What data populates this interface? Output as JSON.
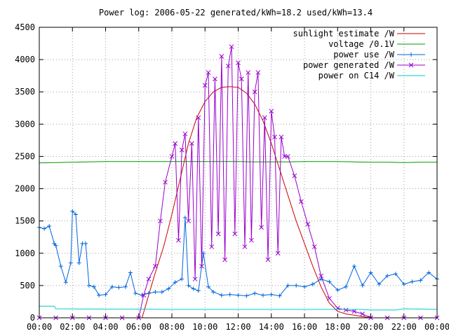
{
  "chart_data": {
    "type": "line",
    "title": "Power log: 2006-05-22 generated/kWh=18.2 used/kWh=13.4",
    "xlabel": "",
    "ylabel": "",
    "xlim": [
      0,
      24
    ],
    "ylim": [
      0,
      4500
    ],
    "grid": true,
    "legend_position": "top-right",
    "x_ticks": [
      {
        "v": 0,
        "label": "00:00"
      },
      {
        "v": 2,
        "label": "02:00"
      },
      {
        "v": 4,
        "label": "04:00"
      },
      {
        "v": 6,
        "label": "06:00"
      },
      {
        "v": 8,
        "label": "08:00"
      },
      {
        "v": 10,
        "label": "10:00"
      },
      {
        "v": 12,
        "label": "12:00"
      },
      {
        "v": 14,
        "label": "14:00"
      },
      {
        "v": 16,
        "label": "16:00"
      },
      {
        "v": 18,
        "label": "18:00"
      },
      {
        "v": 20,
        "label": "20:00"
      },
      {
        "v": 22,
        "label": "22:00"
      },
      {
        "v": 24,
        "label": "00:00"
      }
    ],
    "y_ticks": [
      {
        "v": 0,
        "label": "0"
      },
      {
        "v": 500,
        "label": "500"
      },
      {
        "v": 1000,
        "label": "1000"
      },
      {
        "v": 1500,
        "label": "1500"
      },
      {
        "v": 2000,
        "label": "2000"
      },
      {
        "v": 2500,
        "label": "2500"
      },
      {
        "v": 3000,
        "label": "3000"
      },
      {
        "v": 3500,
        "label": "3500"
      },
      {
        "v": 4000,
        "label": "4000"
      },
      {
        "v": 4500,
        "label": "4500"
      }
    ],
    "series": [
      {
        "name": "sunlight estimate /W",
        "color": "#cc0000",
        "marker": "none",
        "x": [
          6.2,
          6.6,
          7.0,
          7.5,
          8.0,
          8.5,
          9.0,
          9.5,
          10.0,
          10.5,
          11.0,
          11.5,
          12.0,
          12.5,
          13.0,
          13.5,
          14.0,
          14.5,
          15.0,
          15.5,
          16.0,
          16.5,
          17.0,
          17.5,
          18.0,
          18.5,
          19.0,
          19.5,
          20.0
        ],
        "y": [
          0,
          350,
          700,
          1100,
          1600,
          2150,
          2700,
          3100,
          3350,
          3500,
          3570,
          3580,
          3570,
          3480,
          3310,
          3050,
          2700,
          2300,
          1900,
          1500,
          1150,
          800,
          480,
          230,
          100,
          60,
          40,
          20,
          0
        ]
      },
      {
        "name": "voltage /0.1V",
        "color": "#009900",
        "marker": "none",
        "x": [
          0,
          1,
          2,
          3,
          4,
          5,
          6,
          7,
          8,
          9,
          10,
          11,
          12,
          13,
          14,
          15,
          16,
          17,
          18,
          19,
          20,
          21,
          22,
          23,
          24
        ],
        "y": [
          2400,
          2405,
          2410,
          2415,
          2420,
          2420,
          2420,
          2420,
          2420,
          2420,
          2420,
          2420,
          2420,
          2415,
          2415,
          2415,
          2420,
          2420,
          2420,
          2415,
          2410,
          2410,
          2405,
          2410,
          2410
        ]
      },
      {
        "name": "power use /W",
        "color": "#0066dd",
        "marker": "plus",
        "x": [
          0.0,
          0.3,
          0.6,
          0.9,
          1.0,
          1.3,
          1.6,
          1.9,
          2.0,
          2.2,
          2.4,
          2.6,
          2.8,
          3.0,
          3.3,
          3.6,
          4.0,
          4.4,
          4.8,
          5.2,
          5.5,
          5.8,
          6.2,
          6.6,
          7.0,
          7.4,
          7.8,
          8.2,
          8.6,
          8.8,
          9.0,
          9.3,
          9.6,
          9.9,
          10.2,
          10.5,
          11.0,
          11.5,
          12.0,
          12.5,
          13.0,
          13.5,
          14.0,
          14.5,
          15.0,
          15.5,
          16.0,
          16.5,
          17.0,
          17.5,
          18.0,
          18.5,
          19.0,
          19.5,
          20.0,
          20.5,
          21.0,
          21.5,
          22.0,
          22.5,
          23.0,
          23.5,
          24.0
        ],
        "y": [
          1400,
          1380,
          1420,
          1150,
          1120,
          800,
          550,
          850,
          1650,
          1600,
          850,
          1150,
          1150,
          500,
          480,
          350,
          360,
          480,
          470,
          480,
          700,
          380,
          350,
          380,
          400,
          400,
          450,
          550,
          600,
          1550,
          500,
          450,
          420,
          1000,
          480,
          400,
          350,
          360,
          350,
          340,
          380,
          350,
          360,
          340,
          500,
          500,
          480,
          520,
          600,
          560,
          430,
          480,
          800,
          500,
          700,
          520,
          650,
          680,
          520,
          560,
          580,
          700,
          600
        ]
      },
      {
        "name": "power generated /W",
        "color": "#9900cc",
        "marker": "cross",
        "x": [
          0.0,
          1.0,
          2.0,
          3.0,
          4.0,
          5.0,
          6.0,
          6.3,
          6.6,
          7.0,
          7.3,
          7.6,
          8.0,
          8.2,
          8.4,
          8.6,
          8.8,
          9.0,
          9.2,
          9.4,
          9.6,
          9.8,
          10.0,
          10.2,
          10.4,
          10.6,
          10.8,
          11.0,
          11.2,
          11.4,
          11.6,
          11.8,
          12.0,
          12.2,
          12.4,
          12.6,
          12.8,
          13.0,
          13.2,
          13.4,
          13.6,
          13.8,
          14.0,
          14.2,
          14.4,
          14.6,
          14.8,
          15.0,
          15.4,
          15.8,
          16.2,
          16.6,
          17.0,
          17.5,
          18.0,
          18.5,
          19.0,
          19.5,
          20.0,
          21.0,
          22.0,
          23.0,
          24.0
        ],
        "y": [
          0,
          0,
          0,
          0,
          0,
          0,
          0,
          350,
          600,
          800,
          1500,
          2100,
          2500,
          2700,
          1200,
          2600,
          2850,
          1500,
          2700,
          600,
          3100,
          800,
          3600,
          3800,
          1100,
          3700,
          1300,
          4050,
          900,
          3900,
          4200,
          1300,
          3950,
          3700,
          1100,
          3800,
          1200,
          3500,
          3800,
          1400,
          3100,
          900,
          3200,
          2800,
          1000,
          2800,
          2500,
          2500,
          2200,
          1800,
          1450,
          1100,
          650,
          300,
          150,
          120,
          100,
          60,
          0,
          0,
          0,
          0,
          0
        ]
      },
      {
        "name": "power on C14 /W",
        "color": "#00cccc",
        "marker": "none",
        "x": [
          0.0,
          0.9,
          1.0,
          4.0,
          6.0,
          8.0,
          10.0,
          12.0,
          14.0,
          16.0,
          18.0,
          19.5,
          20.0,
          21.5,
          22.0,
          24.0
        ],
        "y": [
          180,
          180,
          140,
          135,
          135,
          130,
          130,
          130,
          130,
          130,
          130,
          130,
          120,
          120,
          140,
          130
        ]
      }
    ]
  }
}
